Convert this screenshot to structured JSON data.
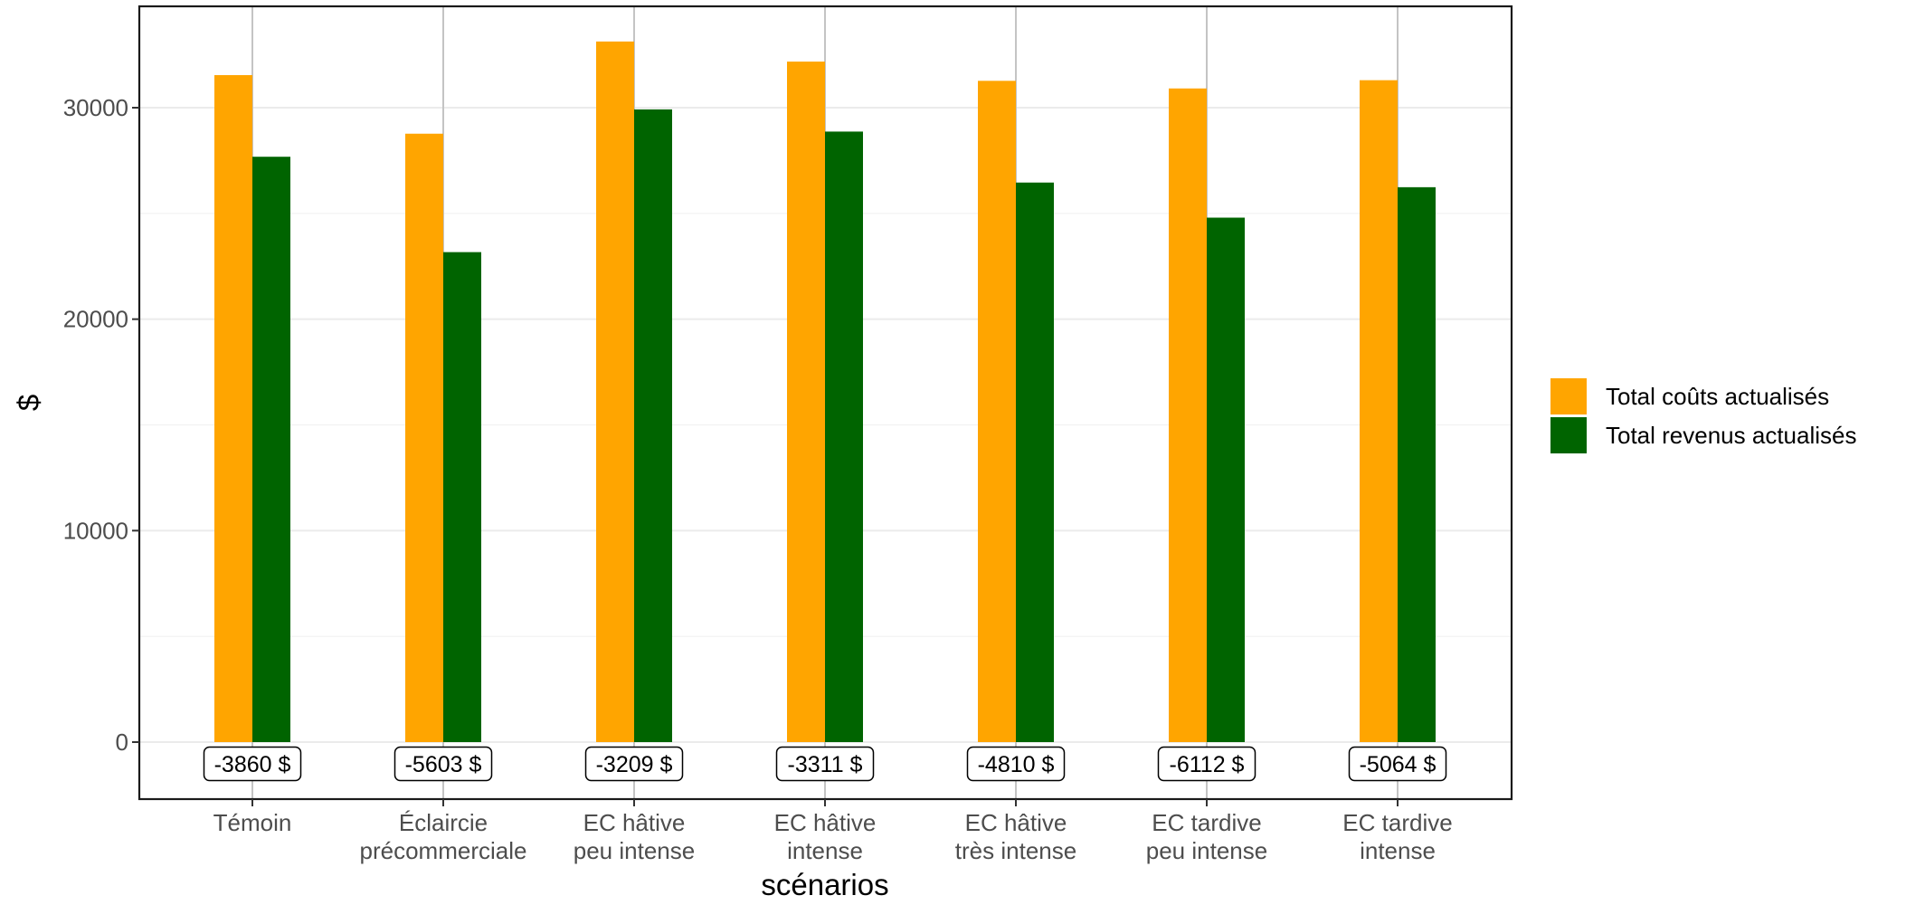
{
  "chart_data": {
    "type": "bar",
    "title": "",
    "xlabel": "scénarios",
    "ylabel": "$",
    "ylim": [
      -2700,
      34600
    ],
    "yticks": [
      0,
      10000,
      20000,
      30000
    ],
    "ytick_labels": [
      "0",
      "10000",
      "20000",
      "30000"
    ],
    "grid": true,
    "legend_position": "right",
    "categories": [
      [
        "Témoin"
      ],
      [
        "Éclaircie",
        "précommerciale"
      ],
      [
        "EC hâtive",
        "peu intense"
      ],
      [
        "EC hâtive",
        "intense"
      ],
      [
        "EC hâtive",
        "très intense"
      ],
      [
        "EC tardive",
        "peu intense"
      ],
      [
        "EC tardive",
        "intense"
      ]
    ],
    "series": [
      {
        "name": "Total coûts actualisés",
        "color": "#FFA500",
        "values": [
          31540,
          28770,
          33130,
          32180,
          31270,
          30910,
          31300
        ]
      },
      {
        "name": "Total revenus actualisés",
        "color": "#006400",
        "values": [
          27680,
          23170,
          29920,
          28870,
          26460,
          24800,
          26240
        ]
      }
    ],
    "annotations": [
      "-3860 $",
      "-5603 $",
      "-3209 $",
      "-3311 $",
      "-4810 $",
      "-6112 $",
      "-5064 $"
    ]
  }
}
